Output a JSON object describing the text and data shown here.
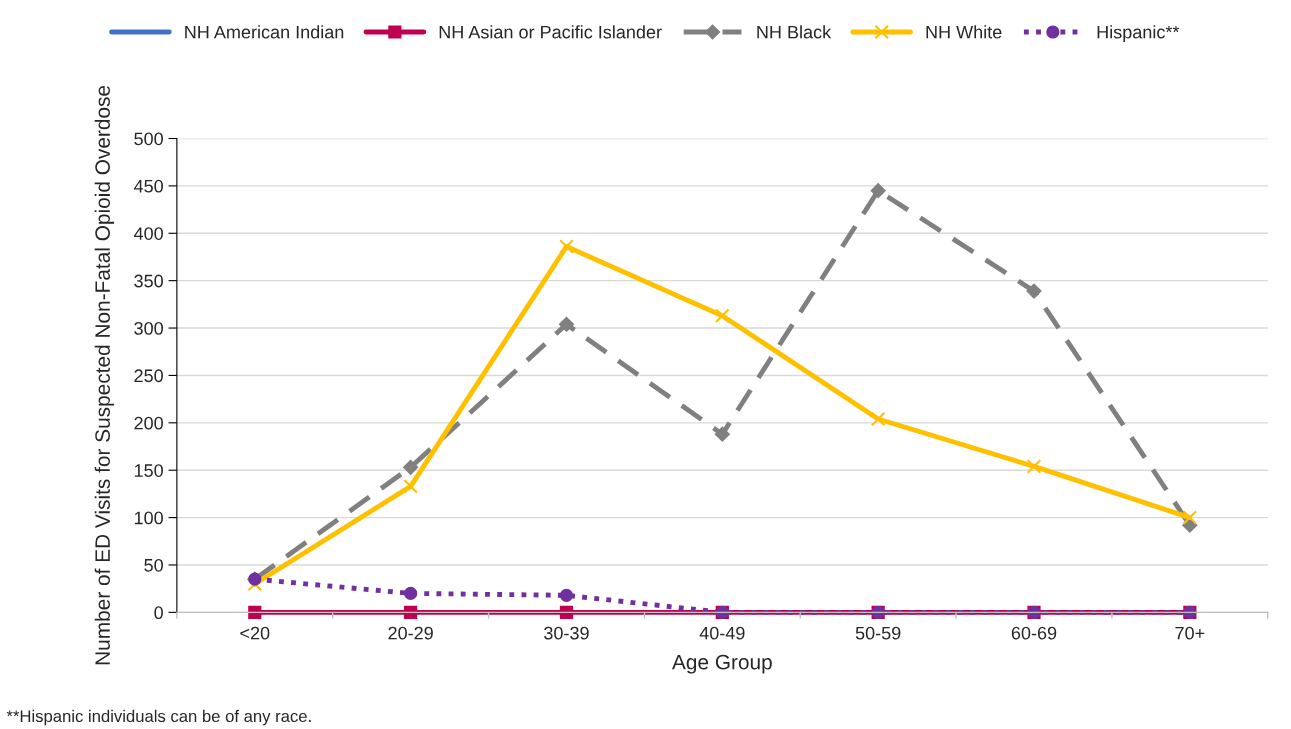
{
  "chart_data": {
    "type": "line",
    "xlabel": "Age Group",
    "ylabel": "Number of ED Visits for Suspected Non-Fatal Opioid Overdose",
    "categories": [
      "<20",
      "20-29",
      "30-39",
      "40-49",
      "50-59",
      "60-69",
      "70+"
    ],
    "series": [
      {
        "name": "NH American Indian",
        "color": "#4472c4",
        "marker": "none",
        "line_style": "solid",
        "values": [
          null,
          null,
          null,
          null,
          null,
          null,
          null
        ]
      },
      {
        "name": "NH Asian or Pacific Islander",
        "color": "#c00050",
        "marker": "square",
        "line_style": "solid",
        "values": [
          0,
          0,
          0,
          0,
          0,
          0,
          0
        ]
      },
      {
        "name": "NH Black",
        "color": "#808080",
        "marker": "diamond",
        "line_style": "dashed",
        "values": [
          35,
          153,
          304,
          188,
          445,
          339,
          92
        ]
      },
      {
        "name": "NH White",
        "color": "#ffc000",
        "marker": "cross",
        "line_style": "solid",
        "values": [
          30,
          133,
          386,
          313,
          204,
          154,
          100
        ]
      },
      {
        "name": "Hispanic**",
        "color": "#7030a0",
        "marker": "circle",
        "line_style": "dotted",
        "values": [
          35,
          20,
          18,
          0,
          0,
          0,
          0
        ]
      }
    ],
    "ylim": [
      0,
      500
    ],
    "yticks": [
      0,
      50,
      100,
      150,
      200,
      250,
      300,
      350,
      400,
      450,
      500
    ],
    "grid": "y",
    "legend": "top",
    "annotations": [
      "**Hispanic individuals can be of any race."
    ]
  }
}
